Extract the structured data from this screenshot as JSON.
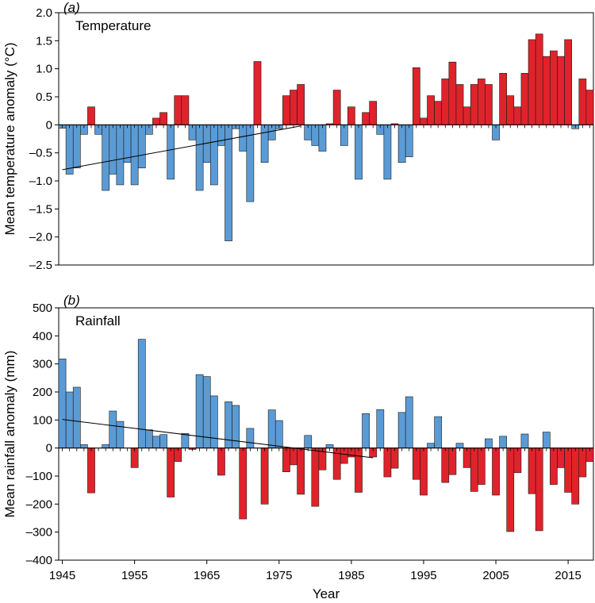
{
  "chart_data": [
    {
      "type": "bar",
      "panel_label": "(a)",
      "title": "Temperature",
      "ylabel": "Mean temperature anomaly (°C)",
      "xlabel": "",
      "ylim": [
        -2.5,
        2.0
      ],
      "yticks": [
        2.0,
        1.5,
        1.0,
        0.5,
        0,
        -0.5,
        -1.0,
        -1.5,
        -2.0,
        -2.5
      ],
      "ytick_labels": [
        "2.0",
        "1.5",
        "1.0",
        "0.5",
        "0",
        "–0.5",
        "–1.0",
        "–1.5",
        "–2.0",
        "–2.5"
      ],
      "xlim": [
        1945,
        2018
      ],
      "x": [
        1945,
        1946,
        1947,
        1948,
        1949,
        1950,
        1951,
        1952,
        1953,
        1954,
        1955,
        1956,
        1957,
        1958,
        1959,
        1960,
        1961,
        1962,
        1963,
        1964,
        1965,
        1966,
        1967,
        1968,
        1969,
        1970,
        1971,
        1972,
        1973,
        1974,
        1975,
        1976,
        1977,
        1978,
        1979,
        1980,
        1981,
        1982,
        1983,
        1984,
        1985,
        1986,
        1987,
        1988,
        1989,
        1990,
        1991,
        1992,
        1993,
        1994,
        1995,
        1996,
        1997,
        1998,
        1999,
        2000,
        2001,
        2002,
        2003,
        2004,
        2005,
        2006,
        2007,
        2008,
        2009,
        2010,
        2011,
        2012,
        2013,
        2014,
        2015,
        2016,
        2017,
        2018
      ],
      "values": [
        -0.06,
        -0.88,
        -0.77,
        -0.17,
        0.32,
        -0.17,
        -1.17,
        -0.88,
        -1.07,
        -0.67,
        -1.07,
        -0.77,
        -0.17,
        0.12,
        0.22,
        -0.97,
        0.52,
        0.52,
        -0.27,
        -1.17,
        -0.67,
        -1.07,
        -0.37,
        -2.07,
        -0.07,
        -0.47,
        -1.37,
        1.13,
        -0.67,
        -0.27,
        -0.07,
        0.52,
        0.62,
        0.72,
        -0.27,
        -0.37,
        -0.47,
        0.02,
        0.62,
        -0.37,
        0.32,
        -0.97,
        0.22,
        0.42,
        -0.17,
        -0.97,
        0.02,
        -0.67,
        -0.57,
        1.02,
        0.12,
        0.52,
        0.42,
        0.82,
        1.12,
        0.72,
        0.32,
        0.72,
        0.82,
        0.72,
        -0.27,
        0.92,
        0.52,
        0.32,
        0.92,
        1.52,
        1.62,
        1.22,
        1.32,
        1.22,
        1.52,
        -0.07,
        0.82,
        0.62
      ],
      "trend": {
        "x": [
          1945,
          1978
        ],
        "y": [
          -0.8,
          -0.02
        ]
      },
      "colors": {
        "positive": "#e0232b",
        "negative": "#5b9bd5"
      }
    },
    {
      "type": "bar",
      "panel_label": "(b)",
      "title": "Rainfall",
      "ylabel": "Mean rainfall anomaly (mm)",
      "xlabel": "Year",
      "ylim": [
        -400,
        500
      ],
      "yticks": [
        500,
        400,
        300,
        200,
        100,
        0,
        -100,
        -200,
        -300,
        -400
      ],
      "ytick_labels": [
        "500",
        "400",
        "300",
        "200",
        "100",
        "0",
        "–100",
        "–200",
        "–300",
        "–400"
      ],
      "xlim": [
        1945,
        2018
      ],
      "xticks": [
        1945,
        1955,
        1965,
        1975,
        1985,
        1995,
        2005,
        2015
      ],
      "xtick_labels": [
        "1945",
        "1955",
        "1965",
        "1975",
        "1985",
        "1995",
        "2005",
        "2015"
      ],
      "x": [
        1945,
        1946,
        1947,
        1948,
        1949,
        1950,
        1951,
        1952,
        1953,
        1954,
        1955,
        1956,
        1957,
        1958,
        1959,
        1960,
        1961,
        1962,
        1963,
        1964,
        1965,
        1966,
        1967,
        1968,
        1969,
        1970,
        1971,
        1972,
        1973,
        1974,
        1975,
        1976,
        1977,
        1978,
        1979,
        1980,
        1981,
        1982,
        1983,
        1984,
        1985,
        1986,
        1987,
        1988,
        1989,
        1990,
        1991,
        1992,
        1993,
        1994,
        1995,
        1996,
        1997,
        1998,
        1999,
        2000,
        2001,
        2002,
        2003,
        2004,
        2005,
        2006,
        2007,
        2008,
        2009,
        2010,
        2011,
        2012,
        2013,
        2014,
        2015,
        2016,
        2017,
        2018
      ],
      "values": [
        318,
        200,
        217,
        12,
        -160,
        0,
        12,
        132,
        95,
        0,
        -70,
        388,
        65,
        42,
        48,
        -175,
        -48,
        52,
        -5,
        262,
        255,
        186,
        -97,
        165,
        152,
        -253,
        70,
        0,
        -200,
        136,
        98,
        -85,
        -60,
        -165,
        45,
        -208,
        -78,
        12,
        -112,
        -55,
        -32,
        -158,
        123,
        -32,
        137,
        -103,
        -72,
        127,
        183,
        -112,
        -168,
        17,
        112,
        -123,
        -95,
        17,
        -70,
        -155,
        -130,
        33,
        -168,
        42,
        -298,
        -88,
        50,
        -163,
        -295,
        57,
        -130,
        -70,
        -158,
        -200,
        -103,
        -48
      ],
      "trend": {
        "x": [
          1945,
          1988
        ],
        "y": [
          102,
          -35
        ]
      },
      "colors": {
        "positive": "#5b9bd5",
        "negative": "#e0232b"
      }
    }
  ]
}
